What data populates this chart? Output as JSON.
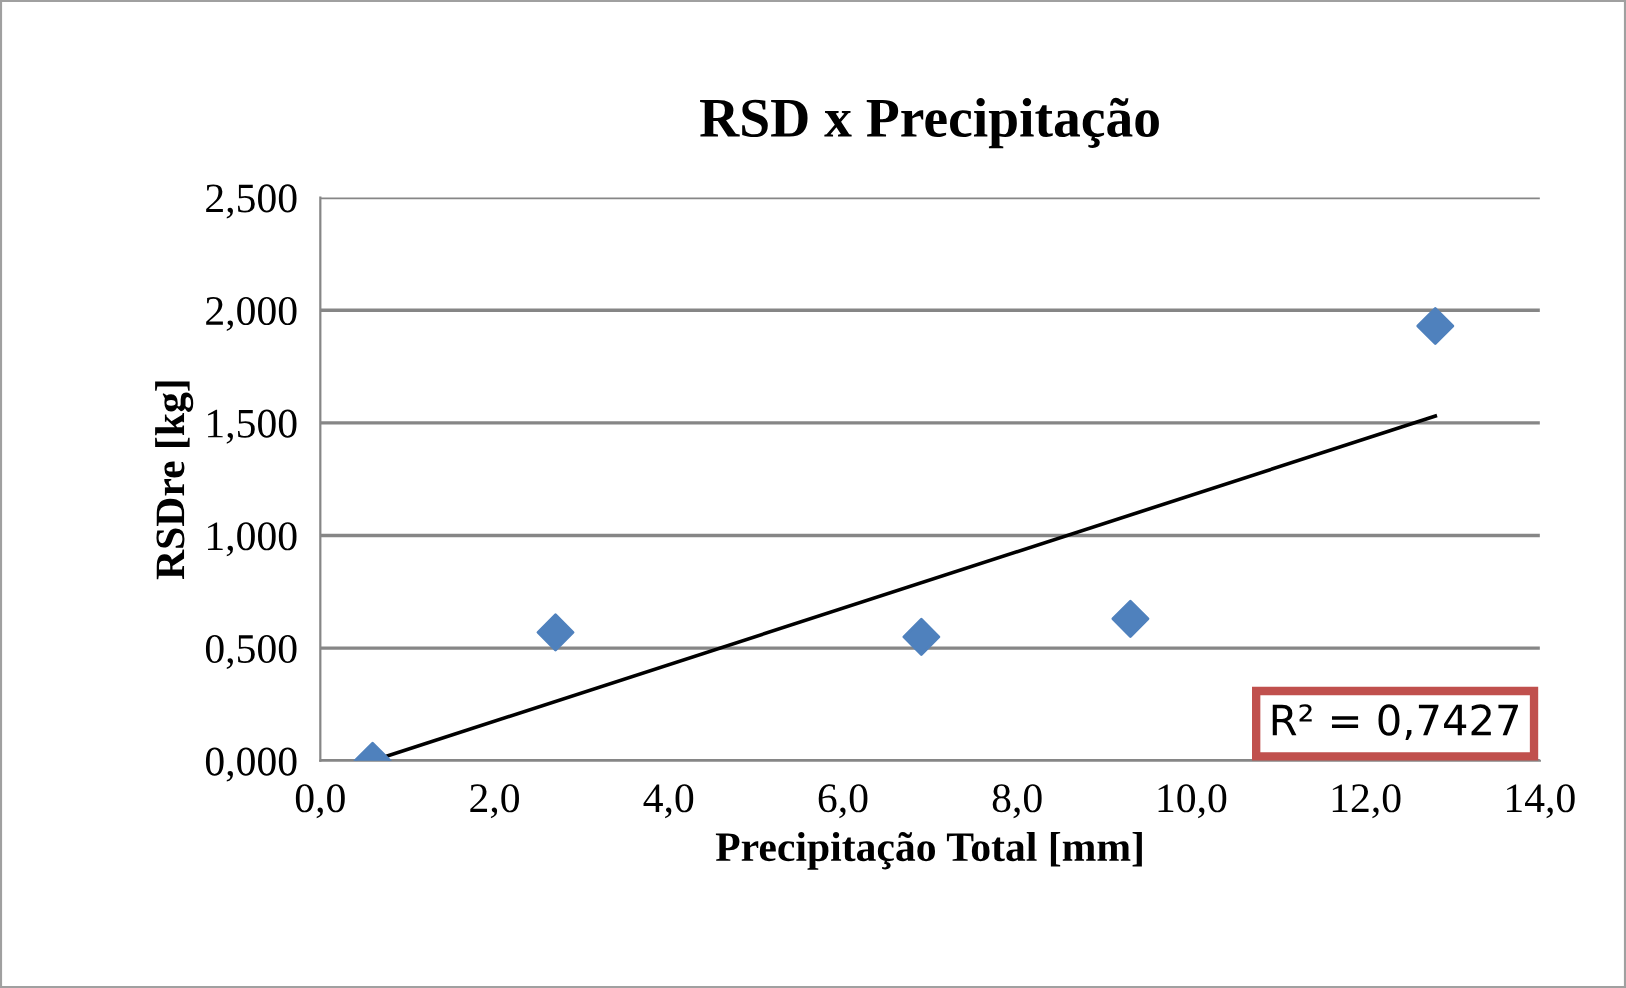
{
  "chart_data": {
    "type": "scatter",
    "title": "RSD x Precipitação",
    "xlabel": "Precipitação Total [mm]",
    "ylabel": "RSDre [kg]",
    "x": [
      0.6,
      2.7,
      6.9,
      9.3,
      12.8
    ],
    "series": [
      {
        "color": "#4f81bd",
        "marker": "diamond",
        "values": [
          0.0,
          0.57,
          0.55,
          0.63,
          1.93
        ]
      },
      {
        "type": "line",
        "color": "#000000",
        "marker": "none",
        "line_style": "solid",
        "x": [
          0.6,
          12.8
        ],
        "values": [
          0.0,
          1.53
        ]
      }
    ],
    "xlim": [
      0,
      14
    ],
    "ylim": [
      0,
      2.5
    ],
    "xticks": [
      {
        "value": 0,
        "label": "0,0"
      },
      {
        "value": 2,
        "label": "2,0"
      },
      {
        "value": 4,
        "label": "4,0"
      },
      {
        "value": 6,
        "label": "6,0"
      },
      {
        "value": 8,
        "label": "8,0"
      },
      {
        "value": 10,
        "label": "10,0"
      },
      {
        "value": 12,
        "label": "12,0"
      },
      {
        "value": 14,
        "label": "14,0"
      }
    ],
    "yticks": [
      {
        "value": 0,
        "label": "0,000"
      },
      {
        "value": 0.5,
        "label": "0,500"
      },
      {
        "value": 1,
        "label": "1,000"
      },
      {
        "value": 1.5,
        "label": "1,500"
      },
      {
        "value": 2,
        "label": "2,000"
      },
      {
        "value": 2.5,
        "label": "2,500"
      }
    ],
    "grid": "y",
    "legend": false,
    "annotations": [
      "R² = 0,7427"
    ]
  }
}
